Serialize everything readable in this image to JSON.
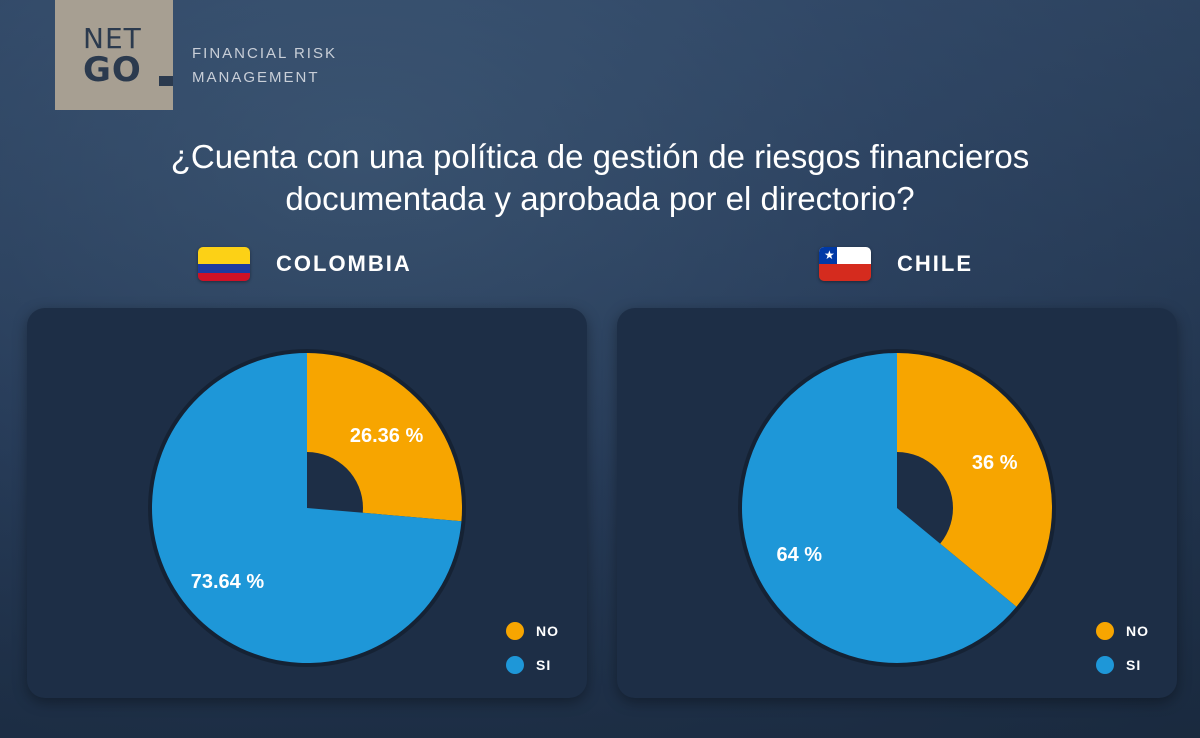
{
  "brand": {
    "logo_line1": "NET",
    "logo_line2": "GO",
    "tagline_line1": "FINANCIAL RISK",
    "tagline_line2": "MANAGEMENT"
  },
  "title_line1": "¿Cuenta con una política de gestión de riesgos financieros",
  "title_line2": "documentada y aprobada por el directorio?",
  "colors": {
    "no": "#f7a500",
    "si": "#1e97d8",
    "hole": "#1d2e46"
  },
  "chart_data": [
    {
      "type": "pie",
      "country": "COLOMBIA",
      "flag": "colombia-flag",
      "slices": [
        {
          "label": "NO",
          "value": 26.36,
          "display": "26.36 %"
        },
        {
          "label": "SI",
          "value": 73.64,
          "display": "73.64 %"
        }
      ],
      "legend": [
        "NO",
        "SI"
      ],
      "legend_placement": "bottom-right"
    },
    {
      "type": "pie",
      "country": "CHILE",
      "flag": "chile-flag",
      "slices": [
        {
          "label": "NO",
          "value": 36,
          "display": "36 %"
        },
        {
          "label": "SI",
          "value": 64,
          "display": "64 %"
        }
      ],
      "legend": [
        "NO",
        "SI"
      ],
      "legend_placement": "bottom-right"
    }
  ]
}
